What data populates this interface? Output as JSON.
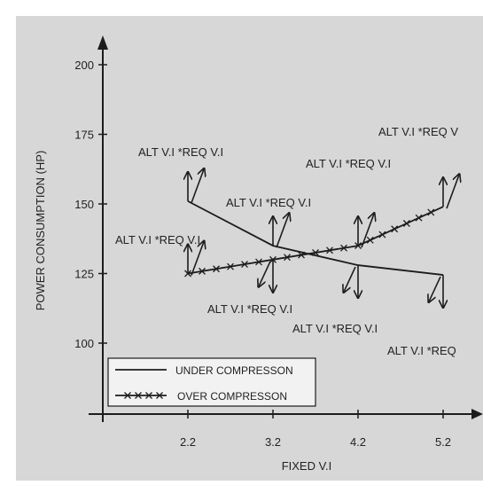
{
  "chart_data": {
    "type": "line",
    "xlabel": "FIXED V.I",
    "ylabel": "POWER CONSUMPTION (HP)",
    "x_ticks": [
      "2.2",
      "3.2",
      "4.2",
      "5.2"
    ],
    "y_ticks": [
      "100",
      "125",
      "150",
      "175",
      "200"
    ],
    "series": [
      {
        "name": "UNDER COMPRESSON",
        "marker": "none",
        "x": [
          2.2,
          3.2,
          4.2,
          5.2
        ],
        "y": [
          151,
          135,
          128,
          124.5
        ]
      },
      {
        "name": "OVER COMPRESSON",
        "marker": "x",
        "x": [
          2.2,
          3.2,
          4.2,
          5.2
        ],
        "y": [
          125,
          130,
          135,
          149
        ]
      }
    ],
    "annotations": [
      {
        "text": "ALT V.I *REQ V.I",
        "x": 2.2,
        "y": 151
      },
      {
        "text": "ALT V.I *REQ V.I",
        "x": 2.2,
        "y": 125
      },
      {
        "text": "ALT V.I *REQ V.I",
        "x": 3.2,
        "y": 135
      },
      {
        "text": "ALT V.I *REQ V.I",
        "x": 3.2,
        "y": 130
      },
      {
        "text": "ALT V.I *REQ V.I",
        "x": 4.2,
        "y": 135
      },
      {
        "text": "ALT V.I *REQ V.I",
        "x": 4.2,
        "y": 128
      },
      {
        "text": "ALT V.I *REQ V",
        "x": 5.2,
        "y": 149
      },
      {
        "text": "ALT V.I *REQ",
        "x": 5.2,
        "y": 124.5
      }
    ],
    "legend_position": "bottom-left",
    "colors": {
      "background": "#d7d7d7",
      "line": "#1c1c1c",
      "legend_bg": "#f2f2f2"
    }
  }
}
